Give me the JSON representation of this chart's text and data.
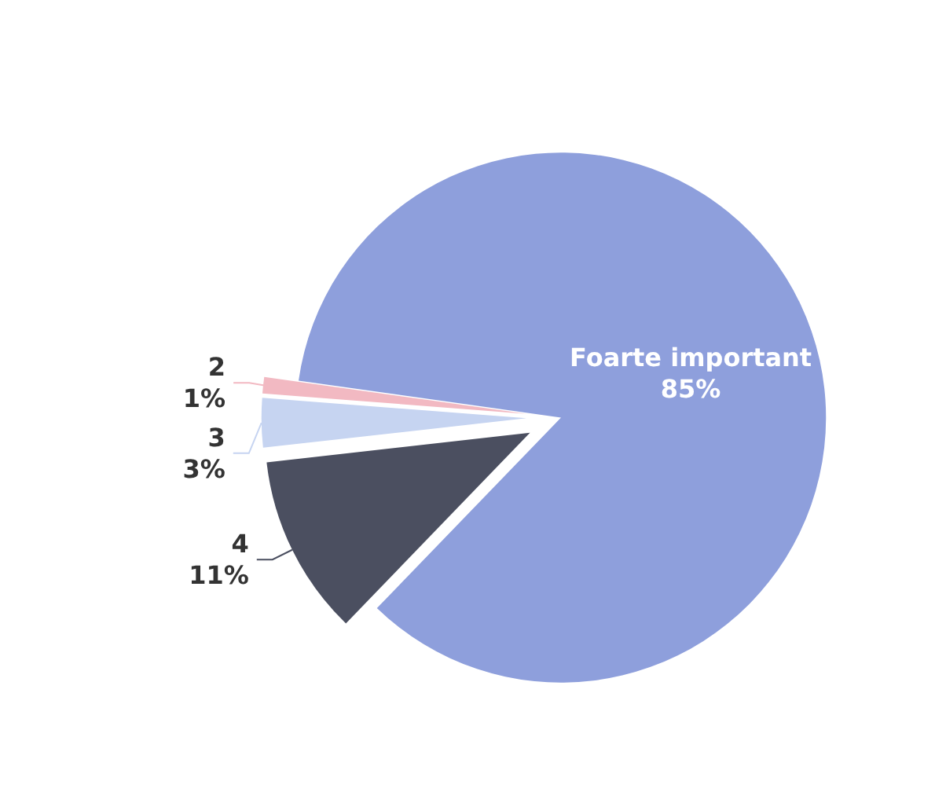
{
  "chart_data": {
    "type": "pie",
    "categories": [
      "Foarte important",
      "4",
      "3",
      "2"
    ],
    "values": [
      85,
      11,
      3,
      1
    ],
    "value_labels": [
      "85%",
      "11%",
      "3%",
      "1%"
    ],
    "colors": [
      "#8e9fdc",
      "#4b4f60",
      "#c6d4f1",
      "#f2b9c2"
    ],
    "legend": false
  }
}
